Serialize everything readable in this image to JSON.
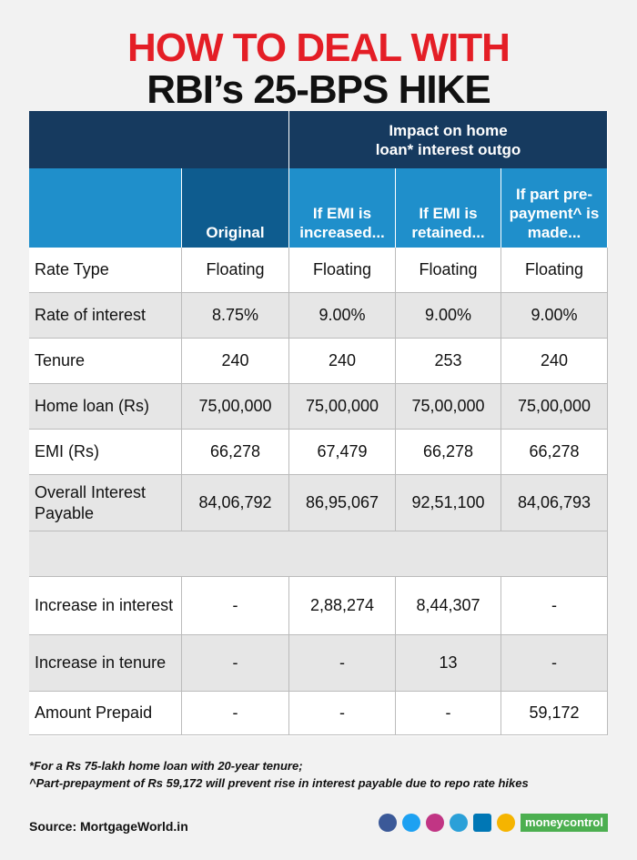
{
  "header": {
    "title_line1": "HOW TO DEAL WITH",
    "title_line2": "RBI’s 25-BPS HIKE"
  },
  "table": {
    "group_header": "Impact on home loan* interest outgo",
    "columns": [
      "",
      "Original",
      "If EMI is increased...",
      "If EMI is retained...",
      "If part pre-payment^ is made..."
    ],
    "rows": [
      [
        "Rate Type",
        "Floating",
        "Floating",
        "Floating",
        "Floating"
      ],
      [
        "Rate of interest",
        "8.75%",
        "9.00%",
        "9.00%",
        "9.00%"
      ],
      [
        "Tenure",
        "240",
        "240",
        "253",
        "240"
      ],
      [
        "Home loan (Rs)",
        "75,00,000",
        "75,00,000",
        "75,00,000",
        "75,00,000"
      ],
      [
        "EMI (Rs)",
        "66,278",
        "67,479",
        "66,278",
        "66,278"
      ],
      [
        "Overall Interest Payable",
        "84,06,792",
        "86,95,067",
        "92,51,100",
        "84,06,793"
      ],
      [
        "Increase in interest",
        "-",
        "2,88,274",
        "8,44,307",
        "-"
      ],
      [
        "Increase in tenure",
        "-",
        "-",
        "13",
        "-"
      ],
      [
        "Amount Prepaid",
        "-",
        "-",
        "-",
        "59,172"
      ]
    ]
  },
  "footnotes": [
    "*For a Rs 75-lakh home loan with 20-year tenure;",
    "^Part-prepayment of Rs 59,172 will prevent rise in interest payable due to repo rate hikes"
  ],
  "source": "Source: MortgageWorld.in",
  "logo": "moneycontrol"
}
